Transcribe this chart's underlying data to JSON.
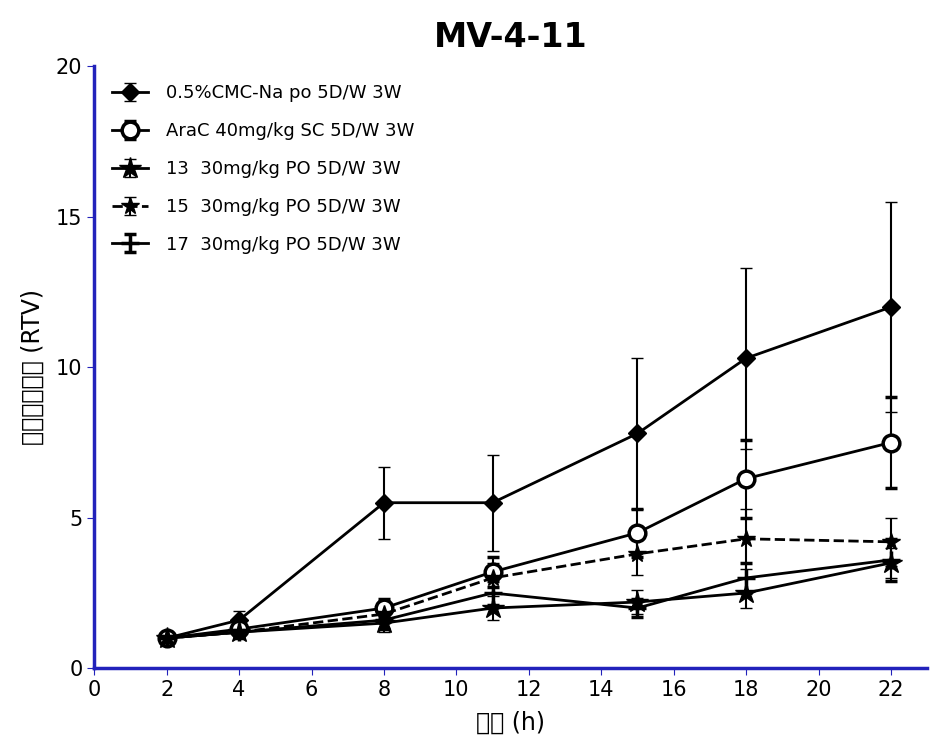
{
  "title": "MV-4-11",
  "xlabel": "时间 (h)",
  "ylabel": "相对肿瘤体积 (RTV)",
  "xlim": [
    0,
    23
  ],
  "ylim": [
    0,
    20
  ],
  "xticks": [
    0,
    2,
    4,
    6,
    8,
    10,
    12,
    14,
    16,
    18,
    20,
    22
  ],
  "yticks": [
    0,
    5,
    10,
    15,
    20
  ],
  "series": [
    {
      "label": "0.5%CMC-Na po 5D/W 3W",
      "x": [
        2,
        4,
        8,
        11,
        15,
        18,
        22
      ],
      "y": [
        1.0,
        1.6,
        5.5,
        5.5,
        7.8,
        10.3,
        12.0
      ],
      "yerr": [
        0.1,
        0.3,
        1.2,
        1.6,
        2.5,
        3.0,
        3.5
      ],
      "marker": "D",
      "markersize": 9,
      "linestyle": "-",
      "color": "#000000",
      "linewidth": 2.0,
      "fillstyle": "full"
    },
    {
      "label": "AraC 40mg/kg SC 5D/W 3W",
      "x": [
        2,
        4,
        8,
        11,
        15,
        18,
        22
      ],
      "y": [
        1.0,
        1.3,
        2.0,
        3.2,
        4.5,
        6.3,
        7.5
      ],
      "yerr": [
        0.1,
        0.2,
        0.3,
        0.5,
        0.8,
        1.3,
        1.5
      ],
      "marker": "o",
      "markersize": 12,
      "linestyle": "-",
      "color": "#000000",
      "linewidth": 2.0,
      "fillstyle": "none"
    },
    {
      "label": "13  30mg/kg PO 5D/W 3W",
      "x": [
        2,
        4,
        8,
        11,
        15,
        18,
        22
      ],
      "y": [
        1.0,
        1.2,
        1.5,
        2.0,
        2.2,
        2.5,
        3.5
      ],
      "yerr": [
        0.1,
        0.2,
        0.3,
        0.4,
        0.4,
        0.5,
        0.5
      ],
      "marker": "*",
      "markersize": 16,
      "linestyle": "-",
      "color": "#000000",
      "linewidth": 2.0,
      "fillstyle": "full"
    },
    {
      "label": "15  30mg/kg PO 5D/W 3W",
      "x": [
        2,
        4,
        8,
        11,
        15,
        18,
        22
      ],
      "y": [
        1.0,
        1.2,
        1.8,
        3.0,
        3.8,
        4.3,
        4.2
      ],
      "yerr": [
        0.1,
        0.2,
        0.3,
        0.5,
        0.7,
        1.0,
        0.8
      ],
      "marker": "*",
      "markersize": 13,
      "linestyle": "--",
      "color": "#000000",
      "linewidth": 2.0,
      "fillstyle": "full"
    },
    {
      "label": "17  30mg/kg PO 5D/W 3W",
      "x": [
        2,
        4,
        8,
        11,
        15,
        18,
        22
      ],
      "y": [
        1.0,
        1.2,
        1.6,
        2.5,
        2.0,
        3.0,
        3.6
      ],
      "yerr": [
        0.1,
        0.2,
        0.3,
        0.4,
        0.3,
        0.5,
        0.7
      ],
      "marker": "+",
      "markersize": 13,
      "linestyle": "-",
      "color": "#000000",
      "linewidth": 2.0,
      "fillstyle": "full"
    }
  ],
  "title_fontsize": 24,
  "axis_label_fontsize": 17,
  "tick_fontsize": 15,
  "legend_fontsize": 13,
  "axis_color": "#2222bb",
  "background_color": "#ffffff"
}
